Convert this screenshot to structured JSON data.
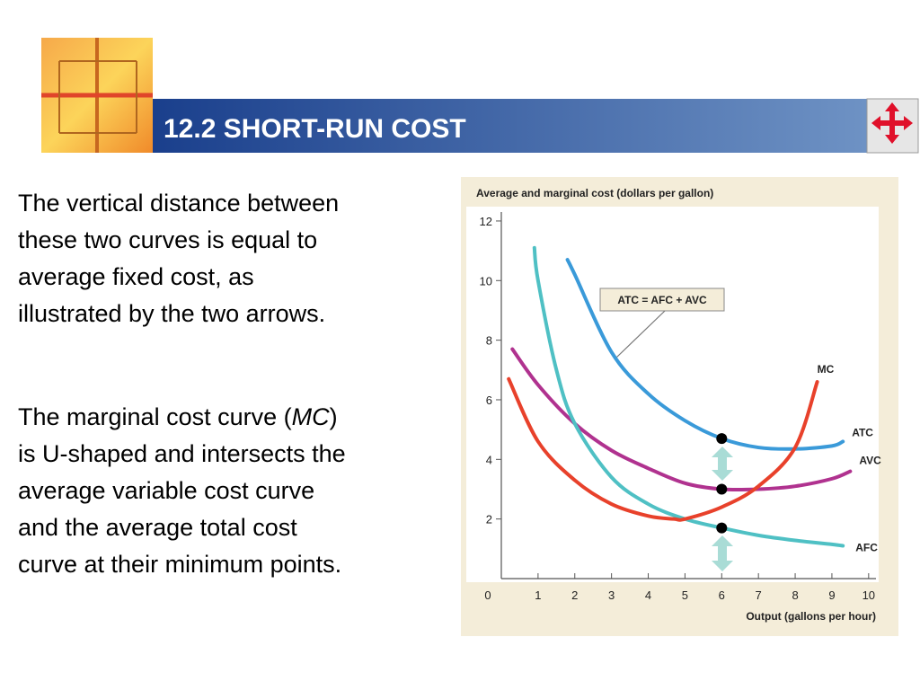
{
  "header": {
    "title": "12.2 SHORT-RUN COST"
  },
  "paragraphs": [
    {
      "lines": [
        "The vertical distance between",
        "these two curves is equal to",
        "average fixed cost, as",
        "illustrated by the two arrows."
      ]
    },
    {
      "first_line": [
        "The marginal cost curve (",
        "MC",
        ")"
      ],
      "lines": [
        "is U-shaped and intersects the",
        "average variable cost curve",
        "and the average total cost",
        "curve at their minimum points."
      ]
    }
  ],
  "chart_data": {
    "type": "line",
    "title": "Average and marginal cost (dollars per gallon)",
    "x_label": "Output (gallons per hour)",
    "annotation": "ATC = AFC + AVC",
    "xlim": [
      0,
      10.2
    ],
    "ylim": [
      0,
      12.3
    ],
    "xticks": [
      0,
      1,
      2,
      3,
      4,
      5,
      6,
      7,
      8,
      9,
      10
    ],
    "yticks": [
      2,
      4,
      6,
      8,
      10,
      12
    ],
    "highlight_x": 6,
    "series": [
      {
        "name": "ATC",
        "color": "#3a9ad9",
        "x": [
          1.8,
          2,
          3,
          4,
          5,
          6,
          7,
          8,
          9,
          9.3
        ],
        "values": [
          10.7,
          10.2,
          7.6,
          6.2,
          5.3,
          4.7,
          4.4,
          4.35,
          4.45,
          4.6
        ]
      },
      {
        "name": "AVC",
        "color": "#b0328f",
        "x": [
          0.3,
          1,
          2,
          3,
          4,
          5,
          6,
          7,
          8,
          9,
          9.5
        ],
        "values": [
          7.7,
          6.5,
          5.2,
          4.3,
          3.7,
          3.2,
          3.0,
          3.0,
          3.1,
          3.35,
          3.6
        ]
      },
      {
        "name": "AFC",
        "color": "#4fc0c4",
        "x": [
          0.9,
          1,
          1.5,
          2,
          3,
          4,
          5,
          6,
          7,
          8,
          9,
          9.3
        ],
        "values": [
          11.1,
          10,
          7,
          5.2,
          3.4,
          2.5,
          2,
          1.7,
          1.45,
          1.28,
          1.15,
          1.1
        ]
      },
      {
        "name": "MC",
        "color": "#e8412b",
        "x": [
          0.2,
          1,
          2,
          3,
          4,
          4.7,
          5,
          6,
          7,
          8,
          8.6
        ],
        "values": [
          6.7,
          4.6,
          3.3,
          2.5,
          2.1,
          2.0,
          2.0,
          2.4,
          3.1,
          4.4,
          6.6
        ]
      }
    ]
  }
}
